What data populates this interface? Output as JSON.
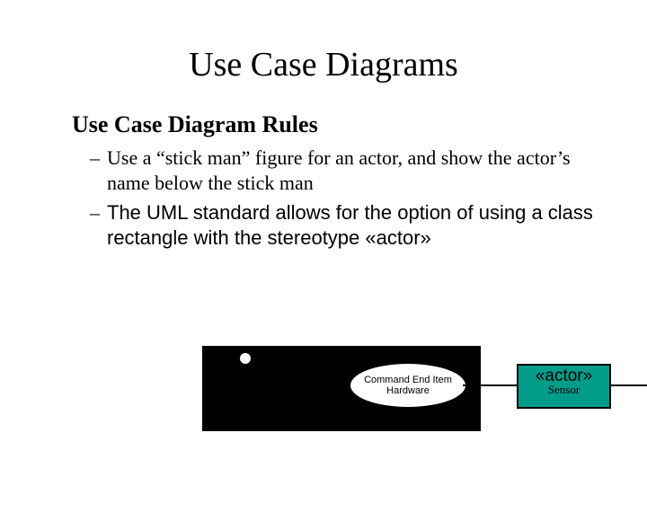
{
  "slide": {
    "title": "Use Case Diagrams",
    "section_title": "Use Case Diagram Rules",
    "bullets": [
      "Use a “stick man” figure for an actor, and show the actor’s name below the stick man",
      "The UML standard allows for the option of using a class rectangle with the stereotype «actor»"
    ]
  },
  "diagram": {
    "background_color": "#000000",
    "use_case_label": "Command End Item Hardware",
    "connector_color": "#000000"
  },
  "actor_box": {
    "stereotype": "«actor»",
    "name": "Sensor",
    "fill_color": "#009c8a",
    "border_color": "#000000",
    "text_color": "#000000"
  },
  "typography": {
    "title_fontsize": 38,
    "section_fontsize": 26,
    "bullet_fontsize": 22,
    "serif_family": "Times New Roman",
    "sans_family": "Arial"
  },
  "colors": {
    "background": "#ffffff",
    "text": "#000000"
  }
}
